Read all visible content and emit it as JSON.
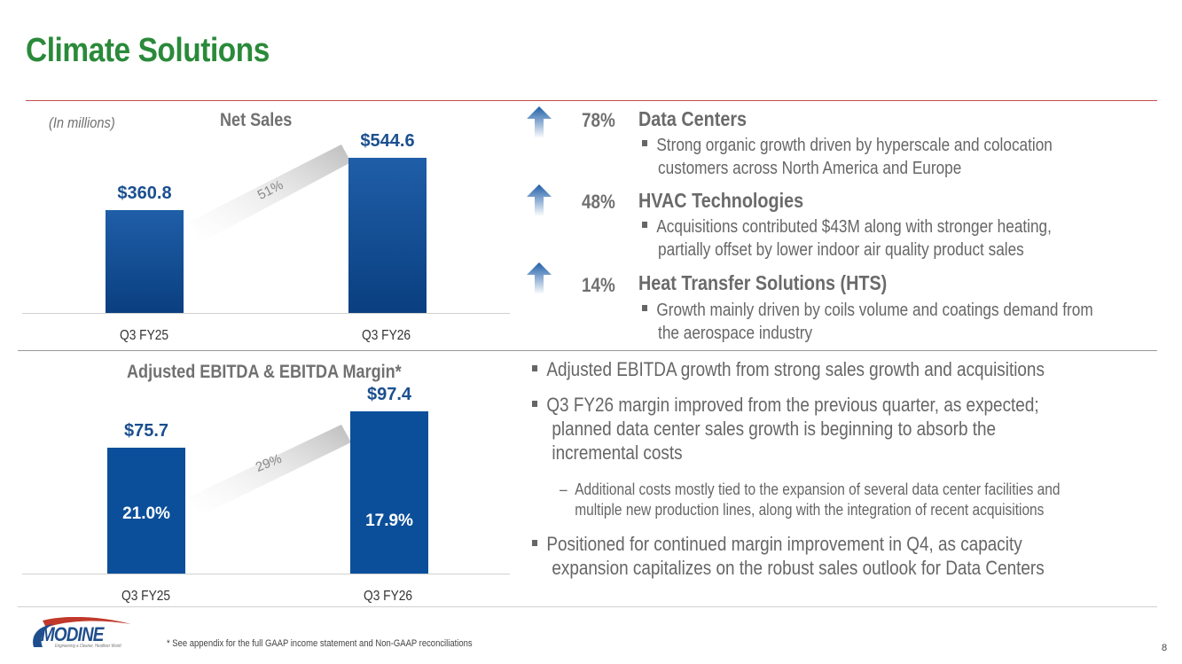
{
  "slide": {
    "title": "Climate Solutions",
    "page_number": "8",
    "footnote": "* See appendix for the full GAAP income statement and Non-GAAP reconciliations"
  },
  "logo": {
    "name": "MODINE",
    "tagline": "Engineering a Cleaner, Healthier World"
  },
  "net_sales_chart": {
    "note": "(In millions)",
    "title": "Net Sales",
    "growth_label": "51%",
    "chart_data": {
      "type": "bar",
      "title": "Net Sales",
      "categories": [
        "Q3 FY25",
        "Q3 FY26"
      ],
      "values": [
        360.8,
        544.6
      ],
      "value_labels": [
        "$360.8",
        "$544.6"
      ],
      "ylim": [
        0,
        600
      ]
    }
  },
  "ebitda_chart": {
    "title": "Adjusted EBITDA & EBITDA Margin*",
    "growth_label": "29%",
    "chart_data": {
      "type": "bar",
      "title": "Adjusted EBITDA & EBITDA Margin*",
      "categories": [
        "Q3 FY25",
        "Q3 FY26"
      ],
      "values": [
        75.7,
        97.4
      ],
      "value_labels": [
        "$75.7",
        "$97.4"
      ],
      "margins": [
        "21.0%",
        "17.9%"
      ],
      "ylim": [
        0,
        110
      ]
    }
  },
  "segments": [
    {
      "pct": "78%",
      "name": "Data Centers",
      "bullet_lines": [
        "Strong organic growth driven by hyperscale and colocation",
        "customers across North America and Europe"
      ]
    },
    {
      "pct": "48%",
      "name": "HVAC Technologies",
      "bullet_lines": [
        "Acquisitions contributed $43M along with stronger heating,",
        "partially offset by lower indoor air quality product sales"
      ]
    },
    {
      "pct": "14%",
      "name": "Heat Transfer Solutions (HTS)",
      "bullet_lines": [
        "Growth mainly driven by coils volume and coatings demand from",
        "the aerospace industry"
      ]
    }
  ],
  "ebitda_bullets": {
    "b1": "Adjusted EBITDA growth from strong sales growth and acquisitions",
    "b2_lines": [
      "Q3 FY26 margin improved from the previous quarter, as expected;",
      "planned data center sales growth is beginning to absorb the",
      "incremental costs"
    ],
    "sub_lines": [
      "Additional costs mostly tied to the expansion of  several data center facilities and",
      "multiple new production lines, along with the integration of recent acquisitions"
    ],
    "b3_lines": [
      "Positioned for continued margin improvement in Q4, as capacity",
      "expansion capitalizes on the robust sales outlook for Data Centers"
    ]
  },
  "colors": {
    "title_green": "#2a8a3a",
    "bar_blue": "#0b4f9a",
    "value_blue": "#1a4f8f",
    "rule_red": "#c0504d"
  }
}
